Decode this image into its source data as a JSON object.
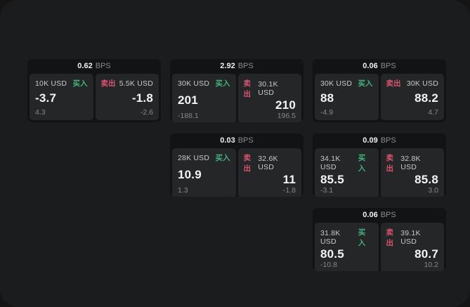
{
  "labels": {
    "buy": "买入",
    "sell": "卖出",
    "bps": "BPS"
  },
  "colors": {
    "buy_green": "#43b27c",
    "sell_red": "#d8546e",
    "window_bg": "#1b1c1d",
    "card_bg": "#121314",
    "tile_bg": "#242628"
  },
  "cards": [
    {
      "bps": "0.62",
      "buy": {
        "size": "10K USD",
        "value": "-3.7",
        "sub": "4.3"
      },
      "sell": {
        "size": "5.5K USD",
        "value": "-1.8",
        "sub": "-2.6"
      }
    },
    {
      "bps": "2.92",
      "buy": {
        "size": "30K USD",
        "value": "201",
        "sub": "-188.1"
      },
      "sell": {
        "size": "30.1K USD",
        "value": "210",
        "sub": "196.5"
      }
    },
    {
      "bps": "0.06",
      "buy": {
        "size": "30K USD",
        "value": "88",
        "sub": "-4.9"
      },
      "sell": {
        "size": "30K USD",
        "value": "88.2",
        "sub": "4.7"
      }
    },
    {
      "bps": "0.03",
      "buy": {
        "size": "28K USD",
        "value": "10.9",
        "sub": "1.3"
      },
      "sell": {
        "size": "32.6K USD",
        "value": "11",
        "sub": "-1.8"
      }
    },
    {
      "bps": "0.09",
      "buy": {
        "size": "34.1K USD",
        "value": "85.5",
        "sub": "-3.1"
      },
      "sell": {
        "size": "32.8K USD",
        "value": "85.8",
        "sub": "3.0"
      }
    },
    {
      "bps": "0.06",
      "buy": {
        "size": "31.8K USD",
        "value": "80.5",
        "sub": "-10.8"
      },
      "sell": {
        "size": "39.1K USD",
        "value": "80.7",
        "sub": "10.2"
      }
    }
  ]
}
